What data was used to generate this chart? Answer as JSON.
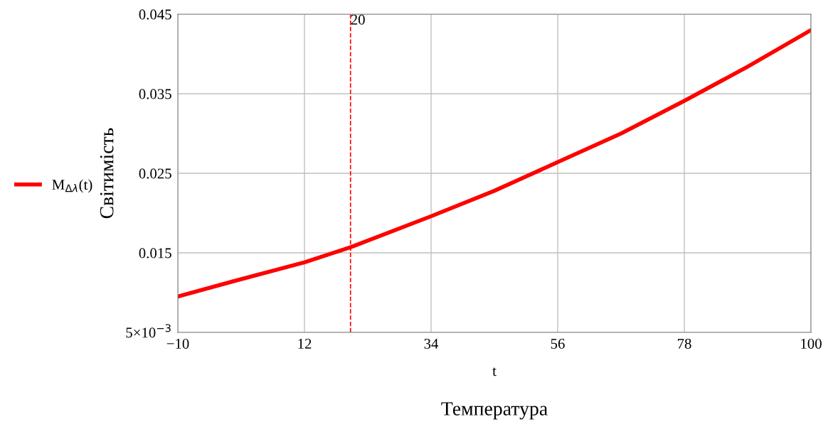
{
  "chart_data": {
    "type": "line",
    "ylabel": "Світимість",
    "xlabel": "t",
    "annotations": [
      "Температура"
    ],
    "x": [
      -10,
      0,
      12,
      20,
      34,
      45,
      56,
      67,
      78,
      89,
      100
    ],
    "series": [
      {
        "name": "M$_{Δλ}$(t)",
        "color": "#ff0000",
        "values": [
          0.0095,
          0.0115,
          0.0138,
          0.0157,
          0.0196,
          0.0228,
          0.0264,
          0.03,
          0.0341,
          0.0384,
          0.043
        ]
      }
    ],
    "xlim": [
      -10,
      100
    ],
    "xticks": [
      {
        "value": -10,
        "label": "−10"
      },
      12,
      34,
      56,
      78,
      100
    ],
    "ylim": [
      0.005,
      0.045
    ],
    "yticks": [
      {
        "value": 0.005,
        "label": "5×10$^{−3}$"
      },
      0.015,
      0.025,
      0.035,
      0.045
    ],
    "ref_lines": [
      {
        "axis": "x",
        "value": 20,
        "label": "20",
        "color": "#ff0000",
        "line_style": "dashed"
      }
    ],
    "grid": true,
    "legend": "left",
    "line_style": "solid",
    "marker": "none"
  }
}
